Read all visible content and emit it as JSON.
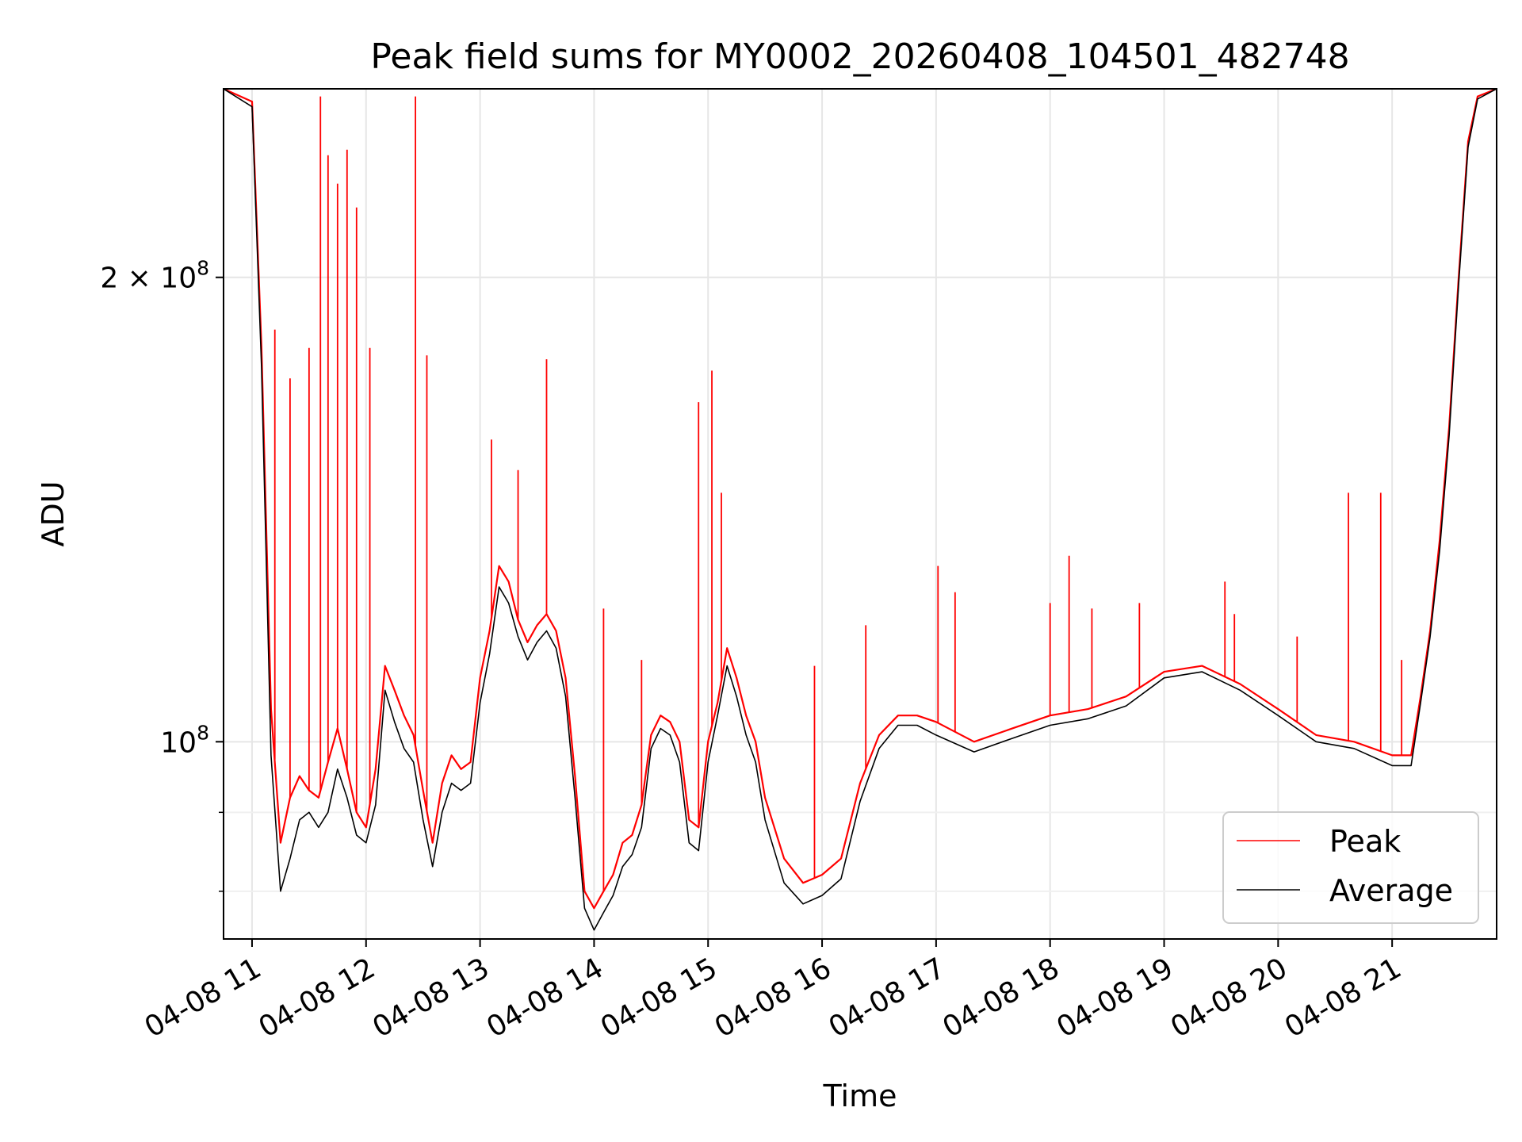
{
  "chart_data": {
    "type": "line",
    "title": "Peak field sums for MY0002_20260408_104501_482748",
    "xlabel": "Time",
    "ylabel": "ADU",
    "y_scale": "log",
    "grid": true,
    "legend_position": "lower right",
    "x_range": [
      "2026-04-08 10:45",
      "2026-04-08 21:55"
    ],
    "y_range": [
      74500000,
      265000000
    ],
    "x_ticks": [
      {
        "value": "2026-04-08 11:00",
        "label": "04-08 11"
      },
      {
        "value": "2026-04-08 12:00",
        "label": "04-08 12"
      },
      {
        "value": "2026-04-08 13:00",
        "label": "04-08 13"
      },
      {
        "value": "2026-04-08 14:00",
        "label": "04-08 14"
      },
      {
        "value": "2026-04-08 15:00",
        "label": "04-08 15"
      },
      {
        "value": "2026-04-08 16:00",
        "label": "04-08 16"
      },
      {
        "value": "2026-04-08 17:00",
        "label": "04-08 17"
      },
      {
        "value": "2026-04-08 18:00",
        "label": "04-08 18"
      },
      {
        "value": "2026-04-08 19:00",
        "label": "04-08 19"
      },
      {
        "value": "2026-04-08 20:00",
        "label": "04-08 20"
      },
      {
        "value": "2026-04-08 21:00",
        "label": "04-08 21"
      }
    ],
    "y_ticks_major": [
      {
        "value": 100000000,
        "label_base": "10",
        "label_exp": "8",
        "label_coef": ""
      },
      {
        "value": 200000000,
        "label_base": "10",
        "label_exp": "8",
        "label_coef": "2 × "
      }
    ],
    "y_ticks_minor": [
      70000000,
      80000000,
      90000000
    ],
    "series": [
      {
        "name": "Peak",
        "color": "#ff0000",
        "x": [
          "2026-04-08 10:45",
          "2026-04-08 11:00",
          "2026-04-08 11:05",
          "2026-04-08 11:10",
          "2026-04-08 11:15",
          "2026-04-08 11:20",
          "2026-04-08 11:25",
          "2026-04-08 11:30",
          "2026-04-08 11:35",
          "2026-04-08 11:40",
          "2026-04-08 11:45",
          "2026-04-08 11:50",
          "2026-04-08 11:55",
          "2026-04-08 12:00",
          "2026-04-08 12:05",
          "2026-04-08 12:10",
          "2026-04-08 12:15",
          "2026-04-08 12:20",
          "2026-04-08 12:25",
          "2026-04-08 12:30",
          "2026-04-08 12:35",
          "2026-04-08 12:40",
          "2026-04-08 12:45",
          "2026-04-08 12:50",
          "2026-04-08 12:55",
          "2026-04-08 13:00",
          "2026-04-08 13:05",
          "2026-04-08 13:10",
          "2026-04-08 13:15",
          "2026-04-08 13:20",
          "2026-04-08 13:25",
          "2026-04-08 13:30",
          "2026-04-08 13:35",
          "2026-04-08 13:40",
          "2026-04-08 13:45",
          "2026-04-08 13:50",
          "2026-04-08 13:55",
          "2026-04-08 14:00",
          "2026-04-08 14:05",
          "2026-04-08 14:10",
          "2026-04-08 14:15",
          "2026-04-08 14:20",
          "2026-04-08 14:25",
          "2026-04-08 14:30",
          "2026-04-08 14:35",
          "2026-04-08 14:40",
          "2026-04-08 14:45",
          "2026-04-08 14:50",
          "2026-04-08 14:55",
          "2026-04-08 15:00",
          "2026-04-08 15:05",
          "2026-04-08 15:10",
          "2026-04-08 15:15",
          "2026-04-08 15:20",
          "2026-04-08 15:25",
          "2026-04-08 15:30",
          "2026-04-08 15:40",
          "2026-04-08 15:50",
          "2026-04-08 16:00",
          "2026-04-08 16:10",
          "2026-04-08 16:20",
          "2026-04-08 16:30",
          "2026-04-08 16:40",
          "2026-04-08 16:50",
          "2026-04-08 17:00",
          "2026-04-08 17:20",
          "2026-04-08 17:40",
          "2026-04-08 18:00",
          "2026-04-08 18:20",
          "2026-04-08 18:40",
          "2026-04-08 19:00",
          "2026-04-08 19:20",
          "2026-04-08 19:40",
          "2026-04-08 20:00",
          "2026-04-08 20:20",
          "2026-04-08 20:40",
          "2026-04-08 21:00",
          "2026-04-08 21:10",
          "2026-04-08 21:15",
          "2026-04-08 21:20",
          "2026-04-08 21:25",
          "2026-04-08 21:30",
          "2026-04-08 21:35",
          "2026-04-08 21:40",
          "2026-04-08 21:45",
          "2026-04-08 21:55"
        ],
        "y": [
          265000000,
          260000000,
          180000000,
          105000000,
          86000000,
          92000000,
          95000000,
          93000000,
          92000000,
          97000000,
          102000000,
          96000000,
          90000000,
          88000000,
          96000000,
          112000000,
          108000000,
          104000000,
          101000000,
          93000000,
          86000000,
          94000000,
          98000000,
          96000000,
          97000000,
          110000000,
          118000000,
          130000000,
          127000000,
          120000000,
          116000000,
          119000000,
          121000000,
          118000000,
          110000000,
          95000000,
          80000000,
          78000000,
          80000000,
          82000000,
          86000000,
          87000000,
          91000000,
          101000000,
          104000000,
          103000000,
          100000000,
          89000000,
          88000000,
          100000000,
          106000000,
          115000000,
          110000000,
          104000000,
          100000000,
          92000000,
          84000000,
          81000000,
          82000000,
          84000000,
          94000000,
          101000000,
          104000000,
          104000000,
          103000000,
          100000000,
          102000000,
          104000000,
          105000000,
          107000000,
          111000000,
          112000000,
          109000000,
          105000000,
          101000000,
          100000000,
          98000000,
          98000000,
          107000000,
          118000000,
          135000000,
          160000000,
          200000000,
          245000000,
          262000000,
          265000000
        ],
        "spikes": [
          {
            "x": "2026-04-08 11:12",
            "y": 185000000
          },
          {
            "x": "2026-04-08 11:20",
            "y": 172000000
          },
          {
            "x": "2026-04-08 11:30",
            "y": 180000000
          },
          {
            "x": "2026-04-08 11:36",
            "y": 262000000
          },
          {
            "x": "2026-04-08 11:40",
            "y": 240000000
          },
          {
            "x": "2026-04-08 11:45",
            "y": 230000000
          },
          {
            "x": "2026-04-08 11:50",
            "y": 242000000
          },
          {
            "x": "2026-04-08 11:55",
            "y": 222000000
          },
          {
            "x": "2026-04-08 12:02",
            "y": 180000000
          },
          {
            "x": "2026-04-08 12:26",
            "y": 262000000
          },
          {
            "x": "2026-04-08 12:32",
            "y": 178000000
          },
          {
            "x": "2026-04-08 13:06",
            "y": 157000000
          },
          {
            "x": "2026-04-08 13:20",
            "y": 150000000
          },
          {
            "x": "2026-04-08 13:35",
            "y": 177000000
          },
          {
            "x": "2026-04-08 14:05",
            "y": 122000000
          },
          {
            "x": "2026-04-08 14:25",
            "y": 113000000
          },
          {
            "x": "2026-04-08 14:55",
            "y": 166000000
          },
          {
            "x": "2026-04-08 15:02",
            "y": 174000000
          },
          {
            "x": "2026-04-08 15:07",
            "y": 145000000
          },
          {
            "x": "2026-04-08 15:56",
            "y": 112000000
          },
          {
            "x": "2026-04-08 16:23",
            "y": 119000000
          },
          {
            "x": "2026-04-08 17:01",
            "y": 130000000
          },
          {
            "x": "2026-04-08 17:10",
            "y": 125000000
          },
          {
            "x": "2026-04-08 18:00",
            "y": 123000000
          },
          {
            "x": "2026-04-08 18:10",
            "y": 132000000
          },
          {
            "x": "2026-04-08 18:22",
            "y": 122000000
          },
          {
            "x": "2026-04-08 18:47",
            "y": 123000000
          },
          {
            "x": "2026-04-08 19:32",
            "y": 127000000
          },
          {
            "x": "2026-04-08 19:37",
            "y": 121000000
          },
          {
            "x": "2026-04-08 20:10",
            "y": 117000000
          },
          {
            "x": "2026-04-08 20:37",
            "y": 145000000
          },
          {
            "x": "2026-04-08 20:54",
            "y": 145000000
          },
          {
            "x": "2026-04-08 21:05",
            "y": 113000000
          }
        ]
      },
      {
        "name": "Average",
        "color": "#000000",
        "x": [
          "2026-04-08 10:45",
          "2026-04-08 11:00",
          "2026-04-08 11:05",
          "2026-04-08 11:10",
          "2026-04-08 11:15",
          "2026-04-08 11:20",
          "2026-04-08 11:25",
          "2026-04-08 11:30",
          "2026-04-08 11:35",
          "2026-04-08 11:40",
          "2026-04-08 11:45",
          "2026-04-08 11:50",
          "2026-04-08 11:55",
          "2026-04-08 12:00",
          "2026-04-08 12:05",
          "2026-04-08 12:10",
          "2026-04-08 12:15",
          "2026-04-08 12:20",
          "2026-04-08 12:25",
          "2026-04-08 12:30",
          "2026-04-08 12:35",
          "2026-04-08 12:40",
          "2026-04-08 12:45",
          "2026-04-08 12:50",
          "2026-04-08 12:55",
          "2026-04-08 13:00",
          "2026-04-08 13:05",
          "2026-04-08 13:10",
          "2026-04-08 13:15",
          "2026-04-08 13:20",
          "2026-04-08 13:25",
          "2026-04-08 13:30",
          "2026-04-08 13:35",
          "2026-04-08 13:40",
          "2026-04-08 13:45",
          "2026-04-08 13:50",
          "2026-04-08 13:55",
          "2026-04-08 14:00",
          "2026-04-08 14:05",
          "2026-04-08 14:10",
          "2026-04-08 14:15",
          "2026-04-08 14:20",
          "2026-04-08 14:25",
          "2026-04-08 14:30",
          "2026-04-08 14:35",
          "2026-04-08 14:40",
          "2026-04-08 14:45",
          "2026-04-08 14:50",
          "2026-04-08 14:55",
          "2026-04-08 15:00",
          "2026-04-08 15:05",
          "2026-04-08 15:10",
          "2026-04-08 15:15",
          "2026-04-08 15:20",
          "2026-04-08 15:25",
          "2026-04-08 15:30",
          "2026-04-08 15:40",
          "2026-04-08 15:50",
          "2026-04-08 16:00",
          "2026-04-08 16:10",
          "2026-04-08 16:20",
          "2026-04-08 16:30",
          "2026-04-08 16:40",
          "2026-04-08 16:50",
          "2026-04-08 17:00",
          "2026-04-08 17:20",
          "2026-04-08 17:40",
          "2026-04-08 18:00",
          "2026-04-08 18:20",
          "2026-04-08 18:40",
          "2026-04-08 19:00",
          "2026-04-08 19:20",
          "2026-04-08 19:40",
          "2026-04-08 20:00",
          "2026-04-08 20:20",
          "2026-04-08 20:40",
          "2026-04-08 21:00",
          "2026-04-08 21:10",
          "2026-04-08 21:15",
          "2026-04-08 21:20",
          "2026-04-08 21:25",
          "2026-04-08 21:30",
          "2026-04-08 21:35",
          "2026-04-08 21:40",
          "2026-04-08 21:45",
          "2026-04-08 21:55"
        ],
        "y": [
          265000000,
          258000000,
          175000000,
          98000000,
          80000000,
          84000000,
          89000000,
          90000000,
          88000000,
          90000000,
          96000000,
          92000000,
          87000000,
          86000000,
          91000000,
          108000000,
          103000000,
          99000000,
          97000000,
          89000000,
          83000000,
          90000000,
          94000000,
          93000000,
          94000000,
          106000000,
          114000000,
          126000000,
          123000000,
          117000000,
          113000000,
          116000000,
          118000000,
          115000000,
          107000000,
          92000000,
          78000000,
          75500000,
          77500000,
          79500000,
          83000000,
          84500000,
          88000000,
          99000000,
          102000000,
          101000000,
          97000000,
          86000000,
          85000000,
          97000000,
          104000000,
          112000000,
          107000000,
          101000000,
          97000000,
          89000000,
          81000000,
          78500000,
          79500000,
          81500000,
          91500000,
          99000000,
          102500000,
          102500000,
          101000000,
          98500000,
          100500000,
          102500000,
          103500000,
          105500000,
          110000000,
          111000000,
          108000000,
          104000000,
          100000000,
          99000000,
          96500000,
          96500000,
          106000000,
          117000000,
          133000000,
          158000000,
          198000000,
          243000000,
          261000000,
          265000000
        ]
      }
    ]
  }
}
